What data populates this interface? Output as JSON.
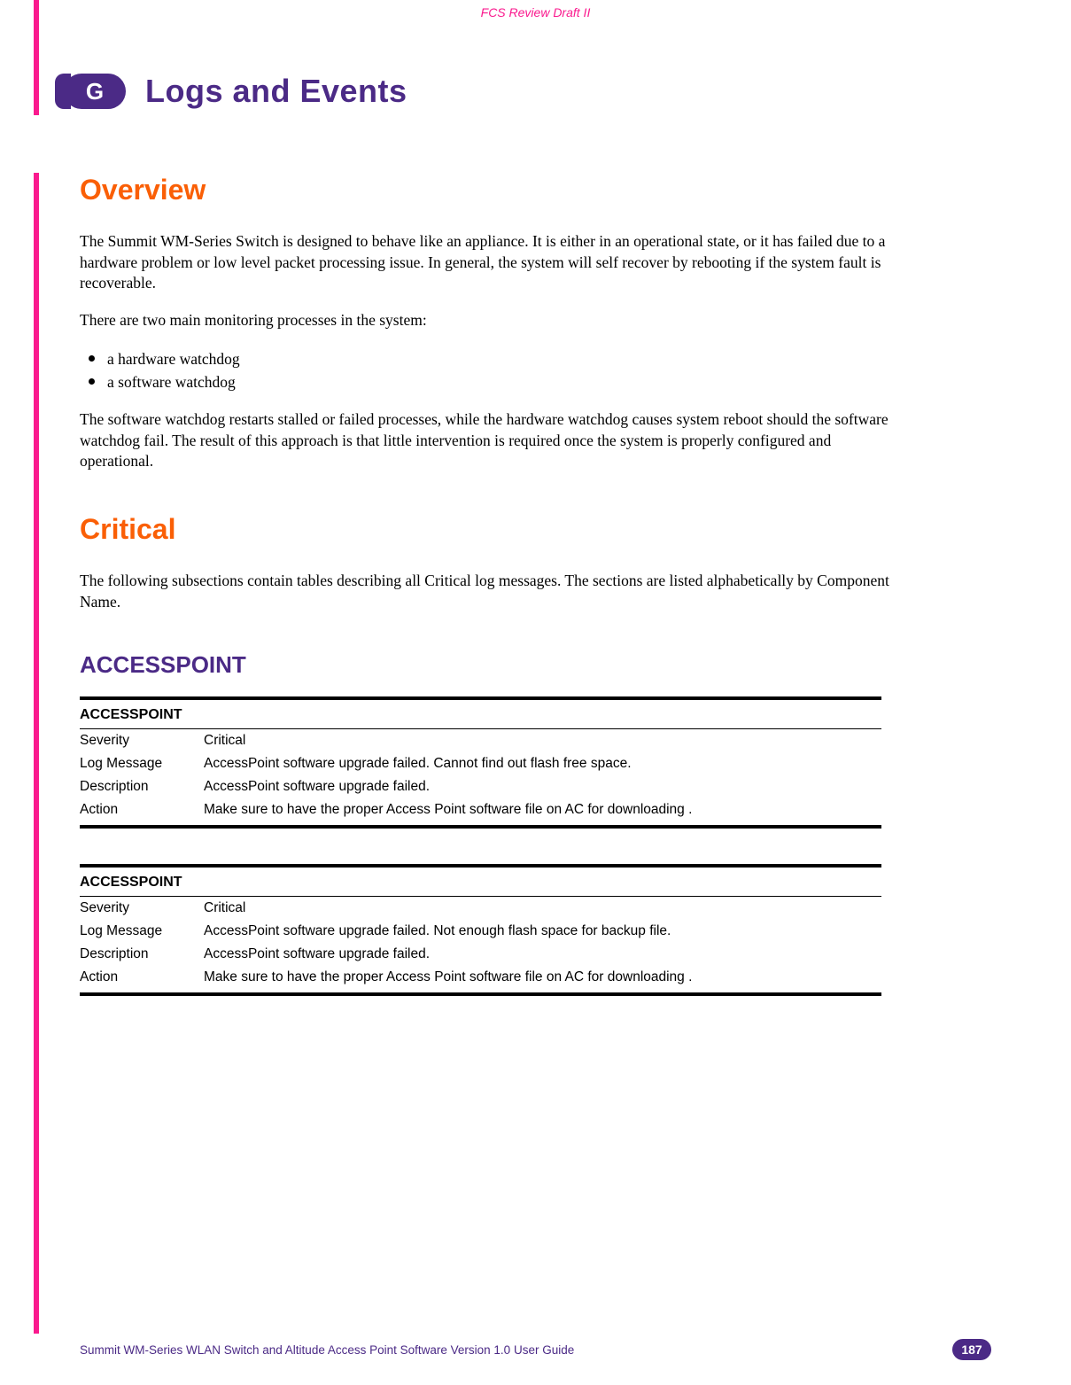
{
  "header": {
    "draft_label": "FCS Review Draft II"
  },
  "chapter": {
    "badge_letter": "G",
    "title": "Logs and Events",
    "badge_bg": "#4b2a86",
    "badge_fg": "#ffffff",
    "title_color": "#4b2a86"
  },
  "sections": {
    "overview": {
      "heading": "Overview",
      "heading_color": "#fa5f06",
      "para1": "The Summit WM-Series Switch is designed to behave like an appliance. It is either in an operational state, or it has failed due to a hardware problem or low level packet processing issue. In general, the system will self recover by rebooting if the system fault is recoverable.",
      "para2": "There are two main monitoring processes in the system:",
      "bullets": [
        "a hardware watchdog",
        "a software watchdog"
      ],
      "para3": "The software watchdog restarts stalled or failed processes, while the hardware watchdog causes system reboot should the software watchdog fail. The result of this approach is that little intervention is required once the system is properly configured and operational."
    },
    "critical": {
      "heading": "Critical",
      "heading_color": "#fa5f06",
      "para1": "The following subsections contain tables describing all Critical log messages. The sections are listed alphabetically by Component Name."
    },
    "accesspoint": {
      "heading": "ACCESSPOINT",
      "heading_color": "#4b2a86"
    }
  },
  "tables": [
    {
      "title": "ACCESSPOINT",
      "rows": [
        {
          "label": "Severity",
          "value": "Critical"
        },
        {
          "label": "Log Message",
          "value": "AccessPoint software upgrade failed. Cannot find out flash free space."
        },
        {
          "label": "Description",
          "value": "AccessPoint software upgrade failed."
        },
        {
          "label": "Action",
          "value": "Make sure to have the proper Access Point software file on AC for downloading ."
        }
      ]
    },
    {
      "title": "ACCESSPOINT",
      "rows": [
        {
          "label": "Severity",
          "value": "Critical"
        },
        {
          "label": "Log Message",
          "value": "AccessPoint software upgrade failed. Not enough flash space for backup file."
        },
        {
          "label": "Description",
          "value": "AccessPoint software upgrade failed."
        },
        {
          "label": "Action",
          "value": "Make sure to have the proper Access Point software file on AC for downloading ."
        }
      ]
    }
  ],
  "footer": {
    "text": "Summit WM-Series WLAN Switch and Altitude Access Point Software Version 1.0 User Guide",
    "page_number": "187",
    "text_color": "#4b2a86",
    "badge_bg": "#4b2a86"
  },
  "colors": {
    "change_bar": "#fa1a8e",
    "draft_label": "#fa1a8e",
    "body_text": "#000000",
    "background": "#ffffff"
  }
}
